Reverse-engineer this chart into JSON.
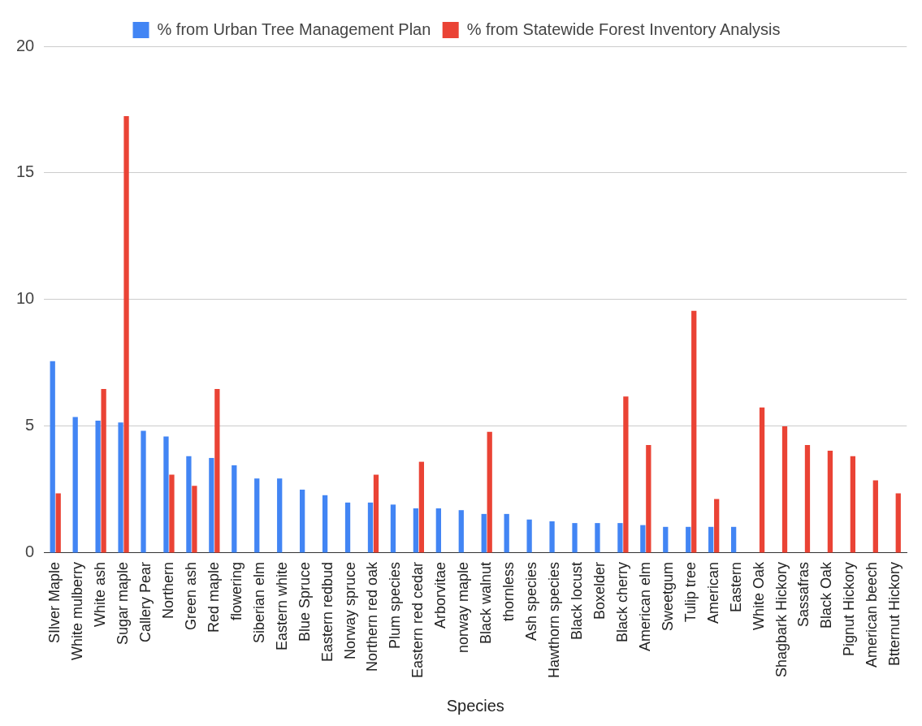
{
  "chart_data": {
    "type": "bar",
    "xlabel": "Species",
    "categories": [
      "SIlver Maple",
      "White mulberry",
      "White ash",
      "Sugar maple",
      "Callery Pear",
      "Northern",
      "Green ash",
      "Red maple",
      "flowering",
      "Siberian elm",
      "Eastern white",
      "Blue Spruce",
      "Eastern redbud",
      "Norway spruce",
      "Northern red oak",
      "Plum species",
      "Eastern red cedar",
      "Arborvitae",
      "norway maple",
      "Black walnut",
      "thornless",
      "Ash species",
      "Hawthorn species",
      "Black locust",
      "Boxelder",
      "Black cherry",
      "American elm",
      "Sweetgum",
      "Tulip tree",
      "American",
      "Eastern",
      "White Oak",
      "Shagbark Hickory",
      "Sassafras",
      "Black Oak",
      "Pignut Hickory",
      "American beech",
      "Btternut Hickory"
    ],
    "series": [
      {
        "name": "% from Urban Tree Management Plan",
        "color": "#4285f4",
        "values": [
          7.57,
          5.37,
          5.22,
          5.15,
          4.82,
          4.6,
          3.82,
          3.75,
          3.46,
          2.94,
          2.94,
          2.5,
          2.28,
          1.99,
          1.99,
          1.91,
          1.76,
          1.76,
          1.69,
          1.54,
          1.54,
          1.32,
          1.25,
          1.18,
          1.18,
          1.18,
          1.1,
          1.03,
          1.03,
          1.03,
          1.03,
          null,
          null,
          null,
          null,
          null,
          null,
          null
        ]
      },
      {
        "name": "% from Statewide Forest Inventory Analysis",
        "color": "#ea4335",
        "values": [
          2.35,
          null,
          6.47,
          17.24,
          null,
          3.09,
          2.65,
          6.47,
          null,
          null,
          null,
          null,
          null,
          null,
          3.09,
          null,
          3.6,
          null,
          null,
          4.78,
          null,
          null,
          null,
          null,
          null,
          6.18,
          4.26,
          null,
          9.56,
          2.13,
          null,
          5.74,
          5.0,
          4.26,
          4.04,
          3.82,
          2.87,
          2.35
        ]
      }
    ],
    "ylim": [
      0,
      20
    ],
    "yticks": [
      0,
      5,
      10,
      15,
      20
    ],
    "grid": "y",
    "legend": "top"
  }
}
